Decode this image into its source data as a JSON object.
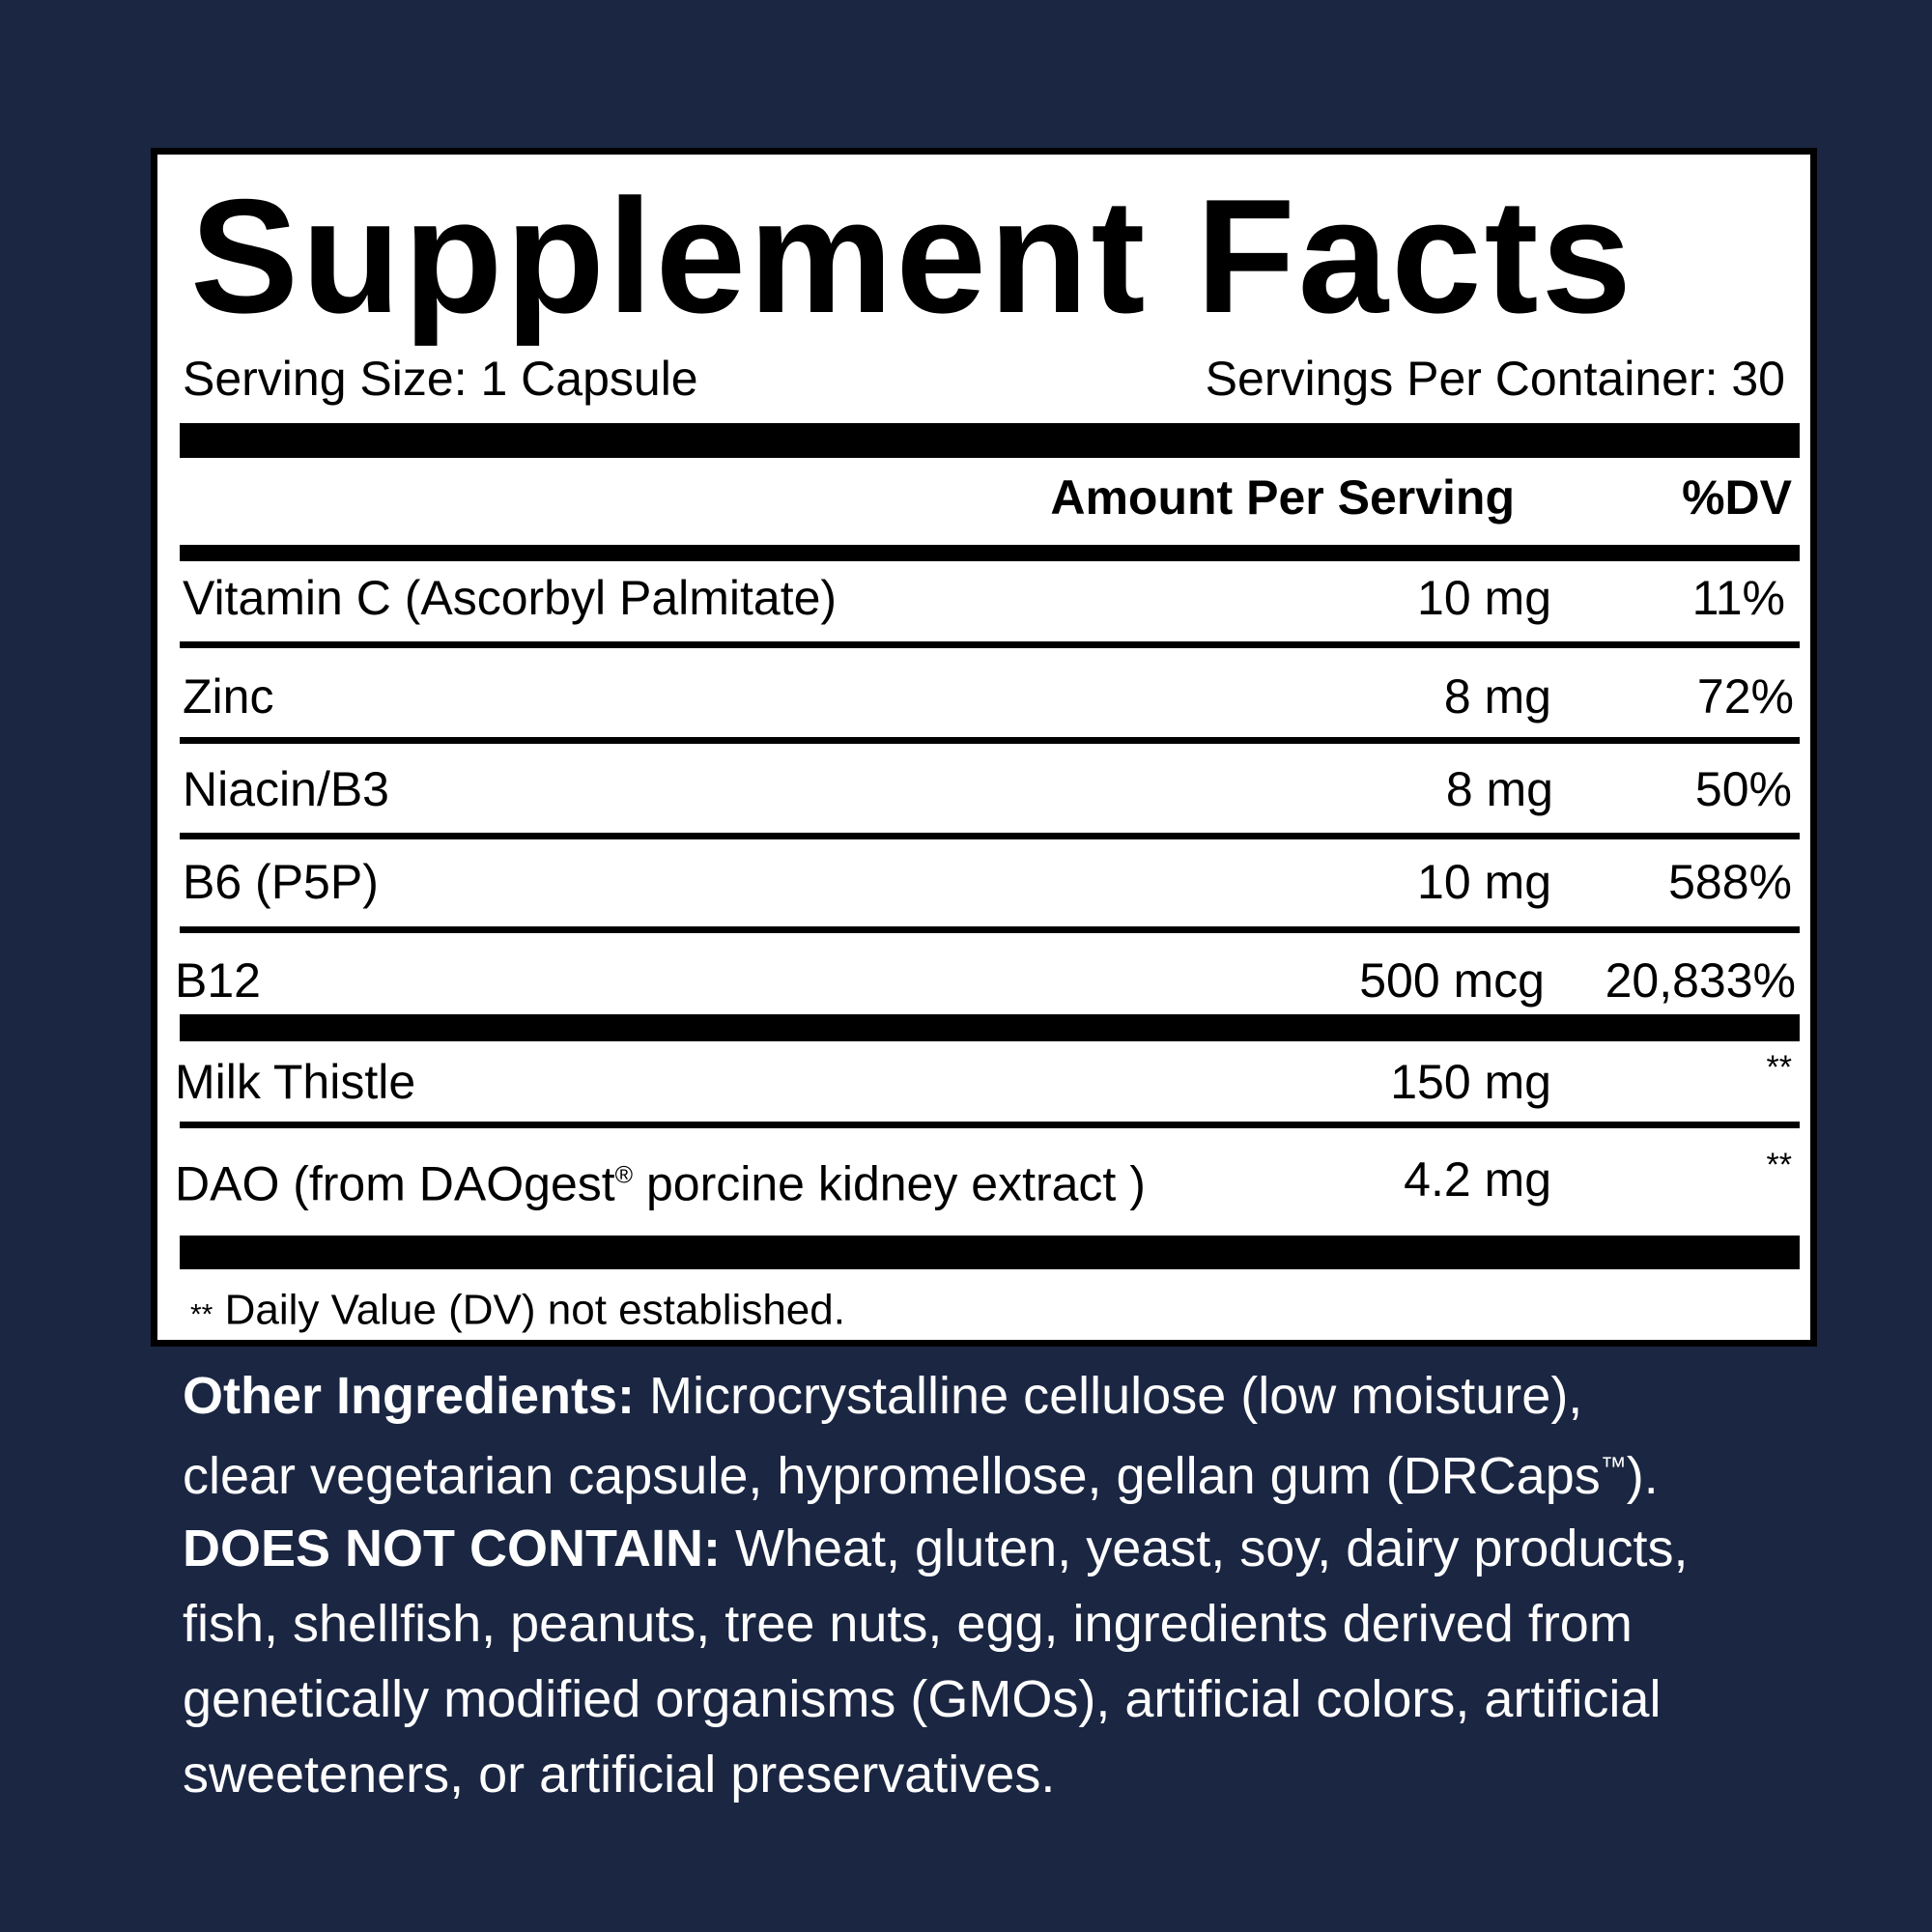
{
  "title": "Supplement Facts",
  "serving_size": "Serving Size: 1 Capsule",
  "servings_per_container": "Servings Per Container: 30",
  "headers": {
    "amount": "Amount Per Serving",
    "dv": "%DV"
  },
  "rows": [
    {
      "name": "Vitamin C (Ascorbyl Palmitate)",
      "amount": "10 mg",
      "dv": "11%"
    },
    {
      "name": "Zinc",
      "amount": "8 mg",
      "dv": "72%"
    },
    {
      "name": "Niacin/B3",
      "amount": "8 mg",
      "dv": "50%"
    },
    {
      "name": "B6 (P5P)",
      "amount": "10 mg",
      "dv": "588%"
    },
    {
      "name": "B12",
      "amount": "500 mcg",
      "dv": "20,833%"
    },
    {
      "name": "Milk Thistle",
      "amount": "150 mg",
      "dv": "**"
    },
    {
      "name_prefix": "DAO (from DAOgest",
      "name_mark": "®",
      "name_suffix": " porcine kidney extract )",
      "amount": "4.2 mg",
      "dv": "**"
    }
  ],
  "footnote_mark": "**",
  "footnote": " Daily Value (DV) not established.",
  "other_ingredients": {
    "label": "Other Ingredients:",
    "line1": " Microcrystalline cellulose (low moisture),",
    "line2": "clear vegetarian capsule, hypromellose, gellan gum (DRCaps",
    "tm": "™",
    "line2_end": ")."
  },
  "does_not_contain": {
    "label": "DOES NOT CONTAIN:",
    "line1": " Wheat, gluten, yeast, soy, dairy products,",
    "line2": "fish, shellfish, peanuts, tree nuts, egg, ingredients derived from",
    "line3": "genetically modified organisms (GMOs), artificial colors, artificial",
    "line4": "sweeteners, or artificial preservatives."
  },
  "colors": {
    "background": "#1a2642",
    "panel": "#ffffff",
    "text": "#000000"
  }
}
